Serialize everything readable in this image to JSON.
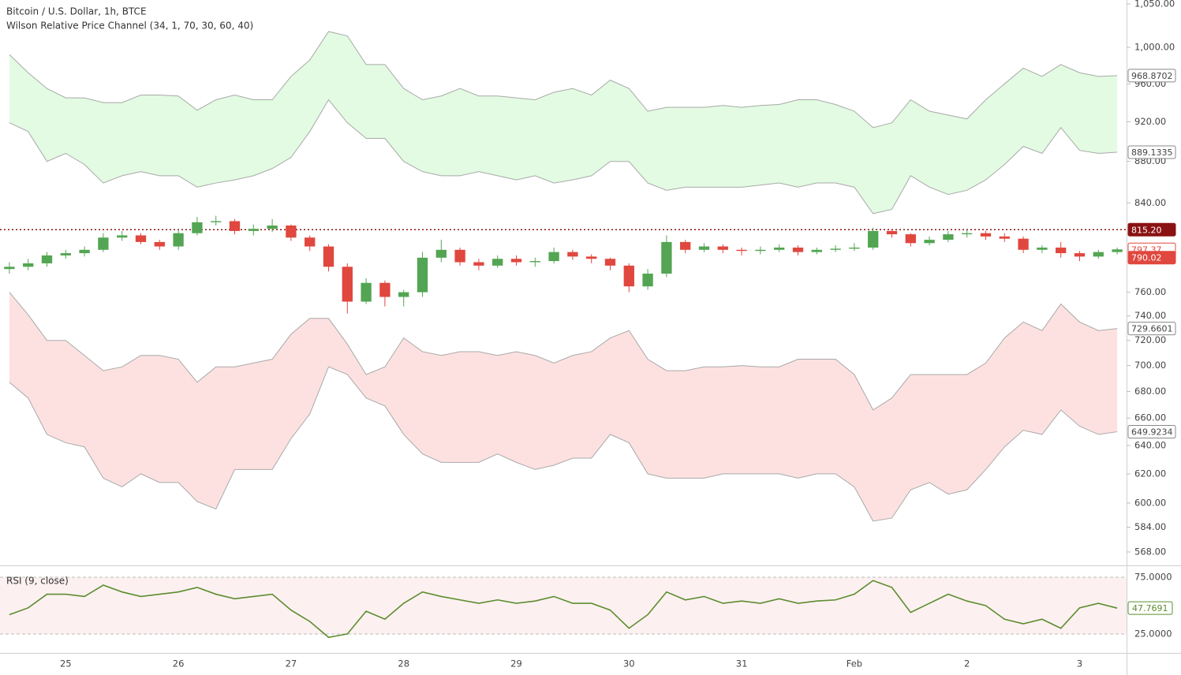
{
  "chart_data": [
    {
      "type": "candlestick",
      "title": "Bitcoin / U.S. Dollar, 1h, BTCE",
      "subtitle": "Wilson Relative Price Channel (34, 1, 70, 30, 60, 40)",
      "categories": [
        null,
        null,
        null,
        "25",
        null,
        null,
        null,
        null,
        null,
        "26",
        null,
        null,
        null,
        null,
        null,
        "27",
        null,
        null,
        null,
        null,
        null,
        "28",
        null,
        null,
        null,
        null,
        null,
        "29",
        null,
        null,
        null,
        null,
        null,
        "30",
        null,
        null,
        null,
        null,
        null,
        "31",
        null,
        null,
        null,
        null,
        null,
        "Feb",
        null,
        null,
        null,
        null,
        null,
        "2",
        null,
        null,
        null,
        null,
        null,
        "3",
        null,
        null
      ],
      "open": [
        780,
        782,
        785,
        792,
        794,
        797,
        808,
        810,
        804,
        800,
        812,
        822,
        823,
        814,
        816,
        819,
        808,
        800,
        782,
        752,
        768,
        756,
        760,
        790,
        797,
        786,
        783,
        789,
        786,
        787,
        795,
        791,
        789,
        783,
        765,
        776,
        804,
        797,
        800,
        797,
        796,
        797,
        799,
        795,
        797,
        798,
        799,
        814,
        811,
        803,
        806,
        811,
        812,
        809,
        807,
        797,
        799,
        794,
        791,
        795
      ],
      "high": [
        786,
        789,
        795,
        797,
        800,
        812,
        814,
        812,
        806,
        815,
        827,
        828,
        825,
        820,
        825,
        820,
        810,
        802,
        785,
        772,
        770,
        762,
        795,
        806,
        799,
        789,
        792,
        792,
        790,
        799,
        797,
        793,
        790,
        785,
        780,
        810,
        806,
        803,
        802,
        799,
        800,
        802,
        801,
        799,
        801,
        803,
        817,
        816,
        812,
        809,
        814,
        815,
        814,
        812,
        809,
        801,
        804,
        796,
        797,
        799
      ],
      "low": [
        776,
        779,
        782,
        789,
        791,
        795,
        805,
        802,
        797,
        797,
        810,
        819,
        811,
        810,
        813,
        805,
        796,
        778,
        742,
        750,
        748,
        748,
        756,
        786,
        783,
        779,
        781,
        783,
        782,
        785,
        788,
        785,
        779,
        760,
        762,
        773,
        794,
        795,
        794,
        792,
        793,
        795,
        792,
        793,
        795,
        796,
        797,
        808,
        800,
        801,
        804,
        808,
        806,
        804,
        794,
        794,
        790,
        787,
        789,
        793
      ],
      "close": [
        782,
        785,
        792,
        794,
        797,
        808,
        810,
        804,
        800,
        812,
        822,
        823,
        814,
        816,
        819,
        808,
        800,
        782,
        752,
        768,
        756,
        760,
        790,
        797,
        786,
        783,
        789,
        786,
        787,
        795,
        791,
        789,
        783,
        765,
        776,
        804,
        797,
        800,
        797,
        796,
        797,
        799,
        795,
        797,
        798,
        799,
        814,
        811,
        803,
        806,
        811,
        812,
        809,
        807,
        797,
        799,
        794,
        791,
        795,
        797.37
      ],
      "up_color": "#53a553",
      "down_color": "#e0473e",
      "channels": [
        {
          "color": "#e2fbe2",
          "upper": [
            992,
            972,
            955,
            945,
            945,
            940,
            940,
            948,
            948,
            947,
            932,
            943,
            948,
            943,
            943,
            968,
            986,
            1018,
            1013,
            981,
            981,
            955,
            943,
            947,
            955,
            947,
            947,
            945,
            943,
            951,
            955,
            948,
            964,
            955,
            931,
            935,
            935,
            935,
            937,
            935,
            937,
            938,
            943,
            943,
            938,
            931,
            914,
            919,
            943,
            931,
            927,
            923,
            943,
            960,
            977,
            968,
            981,
            972,
            968,
            968.8702
          ],
          "lower": [
            919,
            910,
            880,
            888,
            877,
            859,
            866,
            870,
            866,
            866,
            855,
            859,
            862,
            866,
            873,
            884,
            910,
            943,
            919,
            903,
            903,
            880,
            870,
            866,
            866,
            870,
            866,
            862,
            866,
            859,
            862,
            866,
            880,
            880,
            859,
            852,
            855,
            855,
            855,
            855,
            857,
            859,
            855,
            859,
            859,
            855,
            830,
            834,
            866,
            855,
            848,
            852,
            862,
            877,
            895,
            888,
            914,
            891,
            888,
            889.1335
          ]
        },
        {
          "color": "#fde1e1",
          "upper": [
            760,
            741,
            720,
            720,
            708,
            696,
            699,
            708,
            708,
            705,
            687,
            699,
            699,
            702,
            705,
            725,
            738,
            738,
            717,
            693,
            699,
            722,
            711,
            708,
            711,
            711,
            708,
            711,
            708,
            702,
            708,
            711,
            722,
            728,
            705,
            696,
            696,
            699,
            699,
            700,
            699,
            699,
            705,
            705,
            705,
            693,
            666,
            675,
            693,
            693,
            693,
            693,
            702,
            722,
            735,
            728,
            750,
            735,
            728,
            729.6601
          ],
          "lower": [
            687,
            675,
            648,
            642,
            639,
            617,
            611,
            620,
            614,
            614,
            601,
            596,
            623,
            623,
            623,
            645,
            663,
            699,
            693,
            675,
            669,
            648,
            634,
            628,
            628,
            628,
            634,
            628,
            623,
            626,
            631,
            631,
            648,
            642,
            620,
            617,
            617,
            617,
            620,
            620,
            620,
            620,
            617,
            620,
            620,
            611,
            588,
            590,
            609,
            614,
            606,
            609,
            623,
            639,
            651,
            648,
            666,
            654,
            648,
            649.9234
          ]
        }
      ],
      "price_lines": [
        {
          "value": 815.2,
          "label": "815.20",
          "color": "#8b1212"
        },
        {
          "value": 790.02,
          "color": "#e0473e"
        }
      ],
      "log_scale": true,
      "ylim": [
        560.5,
        1054.6
      ],
      "yticks": [
        {
          "value": 1050,
          "label": "1,050.00"
        },
        {
          "value": 1000,
          "label": "1,000.00"
        },
        {
          "value": 960,
          "label": "960.00"
        },
        {
          "value": 920,
          "label": "920.00"
        },
        {
          "value": 880,
          "label": "880.00"
        },
        {
          "value": 840,
          "label": "840.00"
        },
        {
          "value": 760,
          "label": "760.00"
        },
        {
          "value": 740,
          "label": "740.00"
        },
        {
          "value": 720,
          "label": "720.00"
        },
        {
          "value": 700,
          "label": "700.00"
        },
        {
          "value": 680,
          "label": "680.00"
        },
        {
          "value": 660,
          "label": "660.00"
        },
        {
          "value": 640,
          "label": "640.00"
        },
        {
          "value": 620,
          "label": "620.00"
        },
        {
          "value": 600,
          "label": "600.00"
        },
        {
          "value": 584,
          "label": "584.00"
        },
        {
          "value": 568,
          "label": "568.00"
        }
      ]
    },
    {
      "type": "line",
      "title": "RSI (9, close)",
      "values": [
        42,
        48,
        60,
        60,
        58,
        68,
        62,
        58,
        60,
        62,
        66,
        60,
        56,
        58,
        60,
        46,
        36,
        22,
        25,
        45,
        38,
        52,
        62,
        58,
        55,
        52,
        55,
        52,
        54,
        58,
        52,
        52,
        46,
        30,
        42,
        62,
        55,
        58,
        52,
        54,
        52,
        56,
        52,
        54,
        55,
        60,
        72,
        66,
        44,
        52,
        60,
        54,
        50,
        38,
        34,
        38,
        30,
        48,
        52,
        47.7691
      ],
      "color": "#5b8d2f",
      "band_color": "#fdf0f0",
      "ylim": [
        8.3,
        83.3
      ],
      "yticks": [
        {
          "value": 75,
          "label": "75.0000"
        },
        {
          "value": 25,
          "label": "25.0000"
        }
      ]
    }
  ]
}
